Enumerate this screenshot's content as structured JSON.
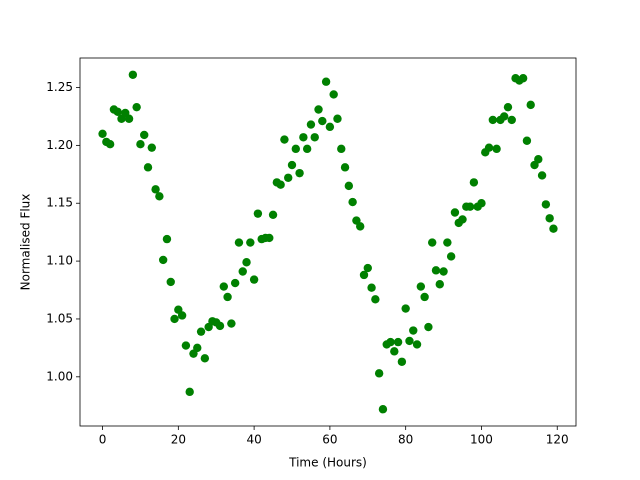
{
  "chart_data": {
    "type": "scatter",
    "x_label": "Time (Hours)",
    "y_label": "Normalised Flux",
    "color": "#008000",
    "x": [
      0,
      1,
      2,
      3,
      4,
      5,
      6,
      7,
      8,
      9,
      10,
      11,
      12,
      13,
      14,
      15,
      16,
      17,
      18,
      19,
      20,
      21,
      22,
      23,
      24,
      25,
      26,
      27,
      28,
      29,
      30,
      31,
      32,
      33,
      34,
      35,
      36,
      37,
      38,
      39,
      40,
      41,
      42,
      43,
      44,
      45,
      46,
      47,
      48,
      49,
      50,
      51,
      52,
      53,
      54,
      55,
      56,
      57,
      58,
      59,
      60,
      61,
      62,
      63,
      64,
      65,
      66,
      67,
      68,
      69,
      70,
      71,
      72,
      73,
      74,
      75,
      76,
      77,
      78,
      79,
      80,
      81,
      82,
      83,
      84,
      85,
      86,
      87,
      88,
      89,
      90,
      91,
      92,
      93,
      94,
      95,
      96,
      97,
      98,
      99,
      100,
      101,
      102,
      103,
      104,
      105,
      106,
      107,
      108,
      109,
      110,
      111,
      112,
      113,
      114,
      115,
      116,
      117,
      118,
      119
    ],
    "values": [
      1.21,
      1.203,
      1.201,
      1.231,
      1.229,
      1.223,
      1.228,
      1.223,
      1.261,
      1.233,
      1.201,
      1.209,
      1.181,
      1.198,
      1.162,
      1.156,
      1.101,
      1.119,
      1.082,
      1.05,
      1.058,
      1.053,
      1.027,
      0.987,
      1.02,
      1.025,
      1.039,
      1.016,
      1.043,
      1.048,
      1.047,
      1.044,
      1.078,
      1.069,
      1.046,
      1.081,
      1.116,
      1.091,
      1.099,
      1.116,
      1.084,
      1.141,
      1.119,
      1.12,
      1.12,
      1.14,
      1.168,
      1.166,
      1.205,
      1.172,
      1.183,
      1.197,
      1.176,
      1.207,
      1.197,
      1.218,
      1.207,
      1.231,
      1.221,
      1.255,
      1.216,
      1.244,
      1.223,
      1.197,
      1.181,
      1.165,
      1.151,
      1.135,
      1.13,
      1.088,
      1.094,
      1.077,
      1.067,
      1.003,
      0.972,
      1.028,
      1.03,
      1.022,
      1.03,
      1.013,
      1.059,
      1.031,
      1.04,
      1.028,
      1.078,
      1.069,
      1.043,
      1.116,
      1.092,
      1.08,
      1.091,
      1.116,
      1.104,
      1.142,
      1.133,
      1.136,
      1.147,
      1.147,
      1.168,
      1.147,
      1.15,
      1.194,
      1.198,
      1.222,
      1.197,
      1.222,
      1.225,
      1.233,
      1.222,
      1.258,
      1.256,
      1.258,
      1.204,
      1.235,
      1.183,
      1.188,
      1.174,
      1.149,
      1.137,
      1.128
    ],
    "xlim": [
      -5.95,
      124.95
    ],
    "xticks": [
      0,
      20,
      40,
      60,
      80,
      100,
      120
    ],
    "ylim": [
      0.9575,
      1.2755
    ],
    "yticks": [
      {
        "value": 1.0,
        "label": "1.00"
      },
      {
        "value": 1.05,
        "label": "1.05"
      },
      {
        "value": 1.1,
        "label": "1.10"
      },
      {
        "value": 1.15,
        "label": "1.15"
      },
      {
        "value": 1.2,
        "label": "1.20"
      },
      {
        "value": 1.25,
        "label": "1.25"
      }
    ],
    "grid": false
  }
}
